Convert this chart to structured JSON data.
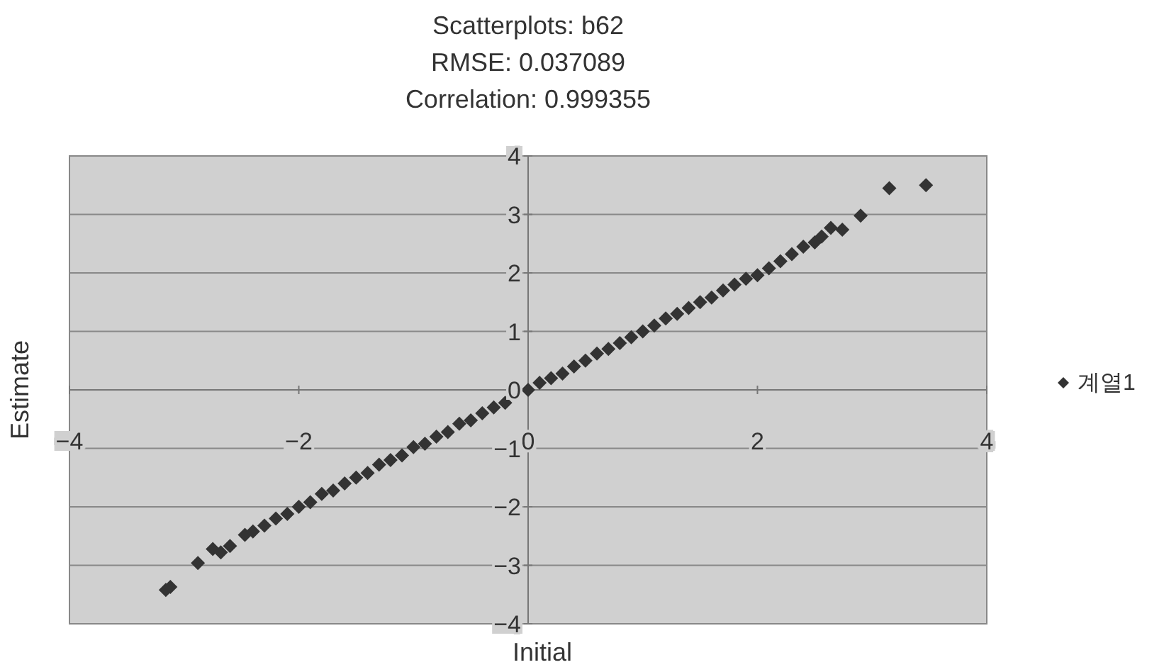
{
  "chart_data": {
    "type": "scatter",
    "title": "Scatterplots: b62",
    "subtitle": "RMSE: 0.037089\nCorrelation: 0.999355",
    "xlabel": "Initial",
    "ylabel": "Estimate",
    "xlim": [
      -4,
      4
    ],
    "ylim": [
      -4,
      4
    ],
    "xticks": [
      -4,
      -2,
      0,
      2,
      4
    ],
    "yticks": [
      -4,
      -3,
      -2,
      -1,
      0,
      1,
      2,
      3,
      4
    ],
    "grid": "y",
    "legend": "right",
    "marker": "diamond",
    "series": [
      {
        "name": "계열1",
        "color": "#333333",
        "x": [
          -3.16,
          -3.12,
          -2.88,
          -2.75,
          -2.68,
          -2.6,
          -2.47,
          -2.4,
          -2.3,
          -2.2,
          -2.1,
          -2.0,
          -1.9,
          -1.8,
          -1.7,
          -1.6,
          -1.5,
          -1.4,
          -1.3,
          -1.2,
          -1.1,
          -1.0,
          -0.9,
          -0.8,
          -0.7,
          -0.6,
          -0.5,
          -0.4,
          -0.3,
          -0.2,
          0,
          0.1,
          0.2,
          0.3,
          0.4,
          0.5,
          0.6,
          0.7,
          0.8,
          0.9,
          1.0,
          1.1,
          1.2,
          1.3,
          1.4,
          1.5,
          1.6,
          1.7,
          1.8,
          1.9,
          2.0,
          2.1,
          2.2,
          2.3,
          2.4,
          2.5,
          2.56,
          2.64,
          2.74,
          2.9,
          3.15,
          3.47
        ],
        "values": [
          -3.42,
          -3.37,
          -2.96,
          -2.72,
          -2.78,
          -2.67,
          -2.48,
          -2.42,
          -2.32,
          -2.2,
          -2.12,
          -2.0,
          -1.92,
          -1.78,
          -1.72,
          -1.6,
          -1.5,
          -1.42,
          -1.28,
          -1.2,
          -1.12,
          -0.98,
          -0.92,
          -0.8,
          -0.72,
          -0.58,
          -0.52,
          -0.4,
          -0.3,
          -0.22,
          0,
          0.12,
          0.2,
          0.28,
          0.4,
          0.5,
          0.62,
          0.7,
          0.8,
          0.9,
          1.0,
          1.1,
          1.22,
          1.3,
          1.4,
          1.5,
          1.58,
          1.7,
          1.8,
          1.9,
          1.96,
          2.08,
          2.2,
          2.32,
          2.45,
          2.52,
          2.62,
          2.77,
          2.74,
          2.98,
          3.45,
          3.5
        ]
      }
    ]
  }
}
